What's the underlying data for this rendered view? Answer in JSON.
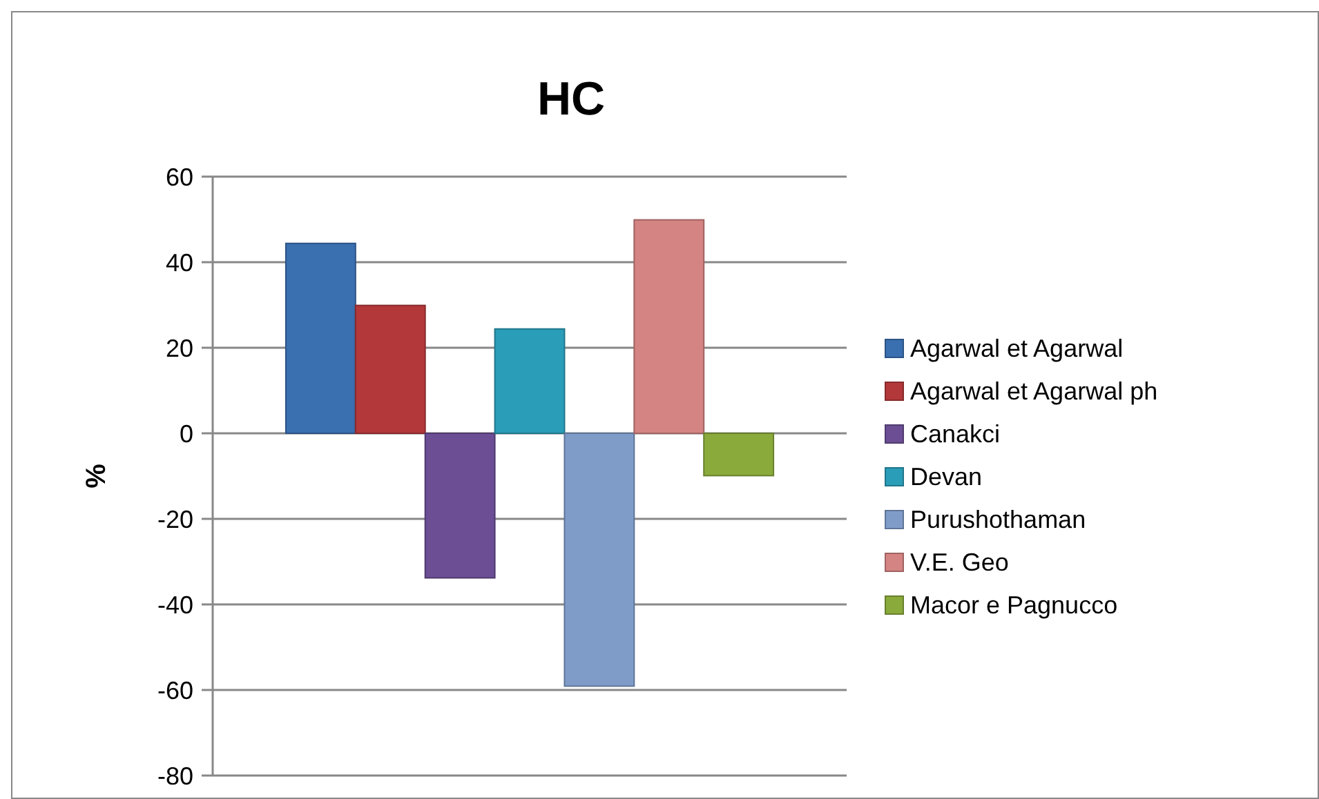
{
  "chart_data": {
    "type": "bar",
    "title": "HC",
    "ylabel": "%",
    "categories": [
      null
    ],
    "series": [
      {
        "name": "Agarwal et Agarwal",
        "color": "#3a6fb0",
        "values": [
          44.4
        ]
      },
      {
        "name": "Agarwal et Agarwal ph",
        "color": "#b3383a",
        "values": [
          29.9
        ]
      },
      {
        "name": "Canakci",
        "color": "#6b4e94",
        "values": [
          -33.8
        ]
      },
      {
        "name": "Devan",
        "color": "#2a9db8",
        "values": [
          24.4
        ]
      },
      {
        "name": "Purushothaman",
        "color": "#7f9cc9",
        "values": [
          -59.1
        ]
      },
      {
        "name": "V.E. Geo",
        "color": "#d48483",
        "values": [
          49.9
        ]
      },
      {
        "name": "Macor e Pagnucco",
        "color": "#8aaa3c",
        "values": [
          -9.9
        ]
      }
    ],
    "ylim": [
      -80,
      60
    ],
    "yticks": [
      -80,
      -60,
      -40,
      -20,
      0,
      20,
      40,
      60
    ],
    "grid": "y",
    "legend": "right"
  }
}
